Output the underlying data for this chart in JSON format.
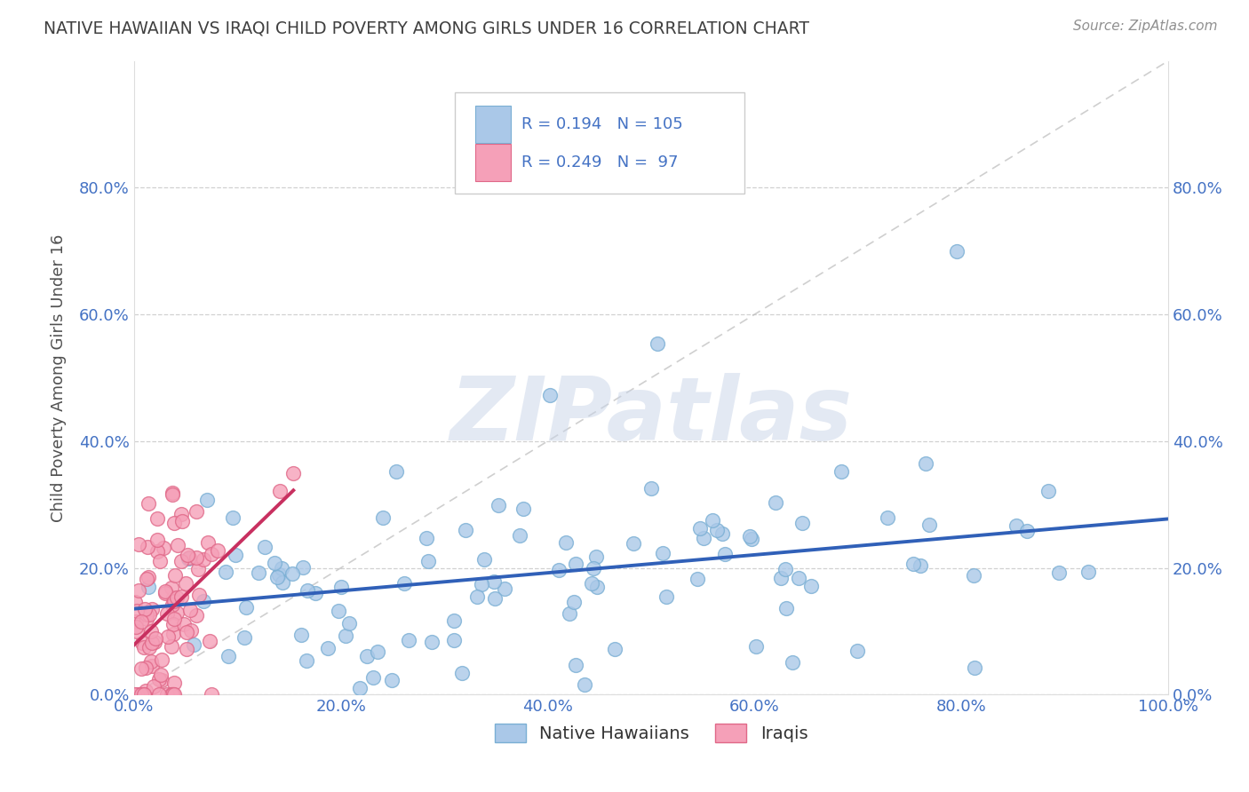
{
  "title": "NATIVE HAWAIIAN VS IRAQI CHILD POVERTY AMONG GIRLS UNDER 16 CORRELATION CHART",
  "source": "Source: ZipAtlas.com",
  "ylabel": "Child Poverty Among Girls Under 16",
  "xlim": [
    0,
    1.0
  ],
  "ylim": [
    0,
    1.0
  ],
  "xtick_labels": [
    "0.0%",
    "20.0%",
    "40.0%",
    "60.0%",
    "80.0%",
    "100.0%"
  ],
  "xtick_vals": [
    0.0,
    0.2,
    0.4,
    0.6,
    0.8,
    1.0
  ],
  "ytick_labels": [
    "0.0%",
    "20.0%",
    "40.0%",
    "60.0%",
    "80.0%"
  ],
  "ytick_vals": [
    0.0,
    0.2,
    0.4,
    0.6,
    0.8
  ],
  "legend_label1": "Native Hawaiians",
  "legend_label2": "Iraqis",
  "R1": 0.194,
  "N1": 105,
  "R2": 0.249,
  "N2": 97,
  "scatter1_color": "#aac8e8",
  "scatter1_edge": "#7aafd4",
  "scatter2_color": "#f5a0b8",
  "scatter2_edge": "#e06888",
  "line1_color": "#3060b8",
  "line2_color": "#c83060",
  "watermark_color": "#c8d4e8",
  "background_color": "#ffffff",
  "grid_color": "#cccccc",
  "title_color": "#404040",
  "axis_label_color": "#505050",
  "tick_color": "#4472c4",
  "source_color": "#909090",
  "legend_stat_color": "#4472c4"
}
